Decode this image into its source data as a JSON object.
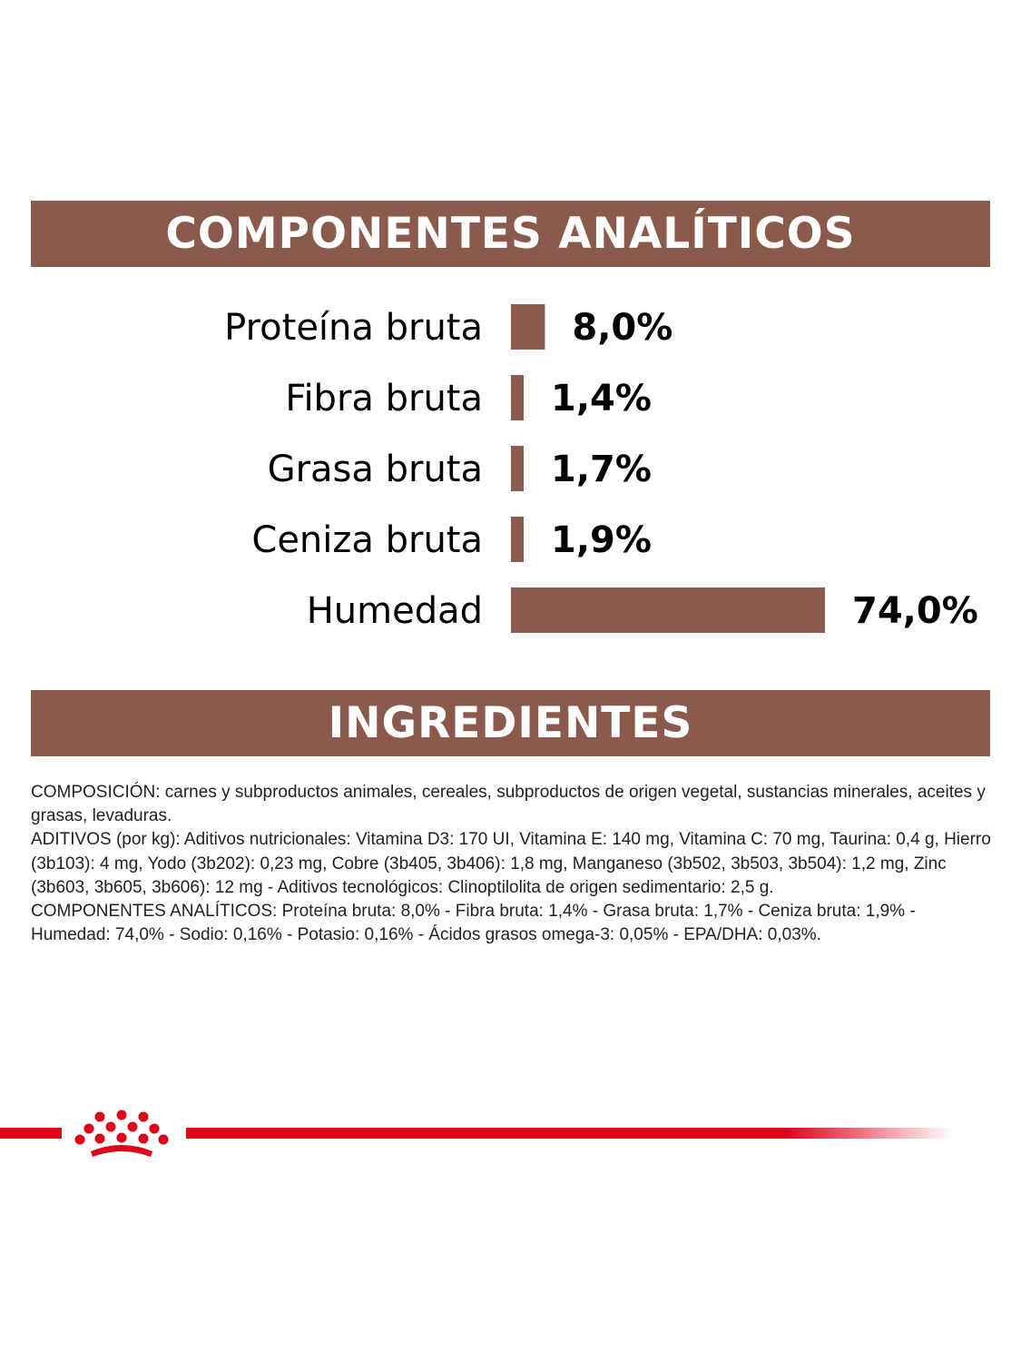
{
  "sections": {
    "analytics_title": "COMPONENTES ANALÍTICOS",
    "ingredients_title": "INGREDIENTES"
  },
  "chart_data": {
    "type": "bar",
    "orientation": "horizontal",
    "categories": [
      "Proteína bruta",
      "Fibra bruta",
      "Grasa bruta",
      "Ceniza bruta",
      "Humedad"
    ],
    "values": [
      8.0,
      1.4,
      1.7,
      1.9,
      74.0
    ],
    "value_labels": [
      "8,0%",
      "1,4%",
      "1,7%",
      "1,9%",
      "74,0%"
    ],
    "unit": "%",
    "bar_color": "#8b5a4d",
    "title": "",
    "xlabel": "",
    "ylabel": "",
    "grid": false
  },
  "ingredients": {
    "composicion": "COMPOSICIÓN: carnes y subproductos animales, cereales, subproductos de origen vegetal, sustancias minerales, aceites y grasas, levaduras.",
    "aditivos": "ADITIVOS (por kg): Aditivos nutricionales: Vitamina D3: 170 UI, Vitamina E: 140 mg, Vitamina C: 70 mg, Taurina: 0,4 g, Hierro (3b103): 4 mg, Yodo (3b202): 0,23 mg, Cobre (3b405, 3b406): 1,8 mg, Manganeso (3b502, 3b503, 3b504): 1,2 mg, Zinc (3b603, 3b605, 3b606): 12 mg - Aditivos tecnológicos: Clinoptilolita de origen sedimentario: 2,5 g.",
    "componentes": "COMPONENTES ANALÍTICOS: Proteína bruta: 8,0% - Fibra bruta: 1,4% - Grasa bruta: 1,7% - Ceniza bruta: 1,9% - Humedad: 74,0% - Sodio: 0,16% - Potasio: 0,16% - Ácidos grasos omega-3: 0,05% - EPA/DHA: 0,03%."
  },
  "brand": {
    "logo_icon": "royal-canin-crown-icon",
    "accent_color": "#e1001a"
  }
}
